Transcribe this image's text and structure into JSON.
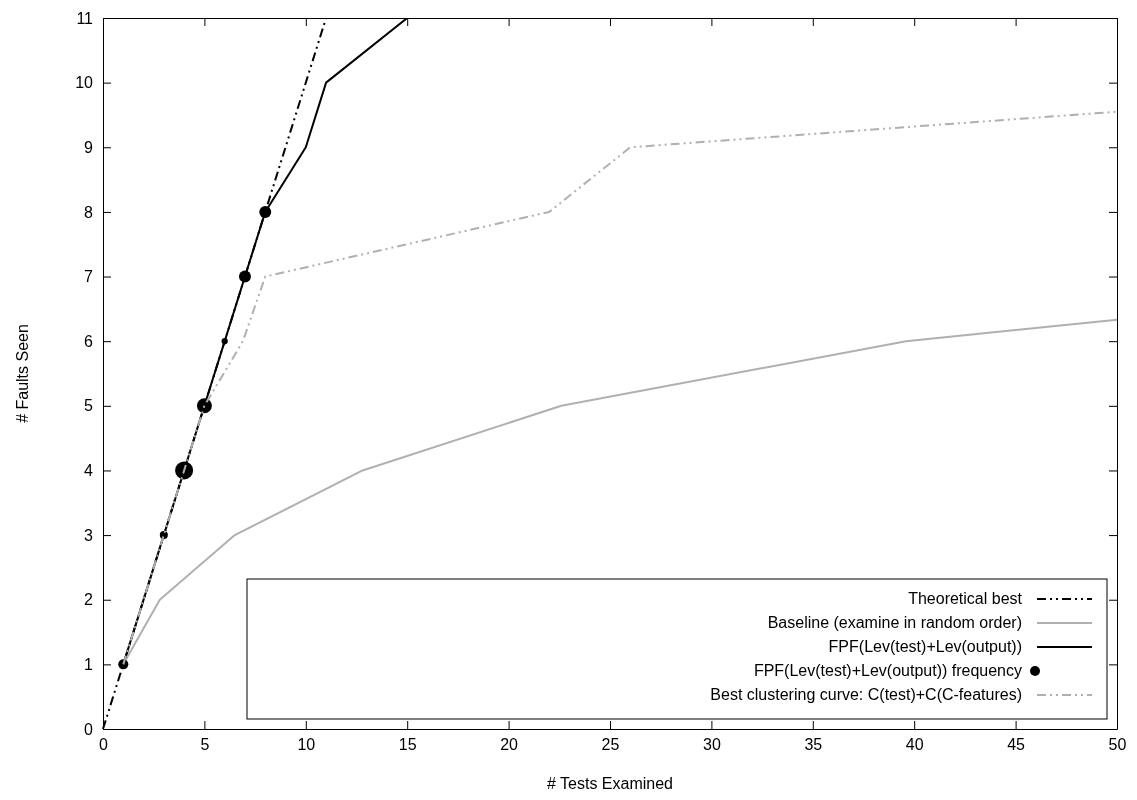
{
  "chart_data": {
    "type": "line",
    "xlabel": "# Tests Examined",
    "ylabel": "# Faults Seen",
    "xlim": [
      0,
      50
    ],
    "xticks": [
      0,
      5,
      10,
      15,
      20,
      25,
      30,
      35,
      40,
      45,
      50
    ],
    "ylim": [
      0,
      11
    ],
    "yticks": [
      0,
      1,
      2,
      3,
      4,
      5,
      6,
      7,
      8,
      9,
      10,
      11
    ],
    "grid": false,
    "legend": "bottom right",
    "series": [
      {
        "name": "Theoretical best",
        "color": "#000000",
        "line_style": "dashed",
        "x": [
          0,
          11
        ],
        "values": [
          0,
          11
        ]
      },
      {
        "name": "Baseline (examine in random order)",
        "color": "#b0b0b0",
        "line_style": "solid",
        "x": [
          1,
          2.8,
          6.5,
          12.8,
          22.6,
          39.6,
          50
        ],
        "values": [
          1,
          2,
          3,
          4,
          5,
          6,
          6.33
        ]
      },
      {
        "name": "FPF(Lev(test)+Lev(output))",
        "color": "#000000",
        "line_style": "solid",
        "x": [
          1,
          3,
          4,
          5,
          6,
          7,
          8,
          10,
          11,
          15
        ],
        "values": [
          1,
          3,
          4,
          5,
          6,
          7,
          8,
          9,
          10,
          11
        ]
      },
      {
        "name": "FPF(Lev(test)+Lev(output)) frequency",
        "type": "bubble",
        "color": "#000000",
        "x": [
          1,
          3,
          4,
          5,
          6,
          7,
          8
        ],
        "values": [
          1,
          3,
          4,
          5,
          6,
          7,
          8
        ],
        "sizes": [
          0.31,
          0.2,
          1,
          0.69,
          0.12,
          0.44,
          0.44
        ]
      },
      {
        "name": "Best clustering curve: C(test)+C(C-features)",
        "color": "#b0b0b0",
        "line_style": "dashed",
        "x": [
          1,
          3,
          4,
          5,
          6.9,
          8,
          22,
          26,
          50
        ],
        "values": [
          1,
          3,
          4,
          5,
          6,
          7,
          8,
          9,
          9.55
        ]
      }
    ]
  }
}
